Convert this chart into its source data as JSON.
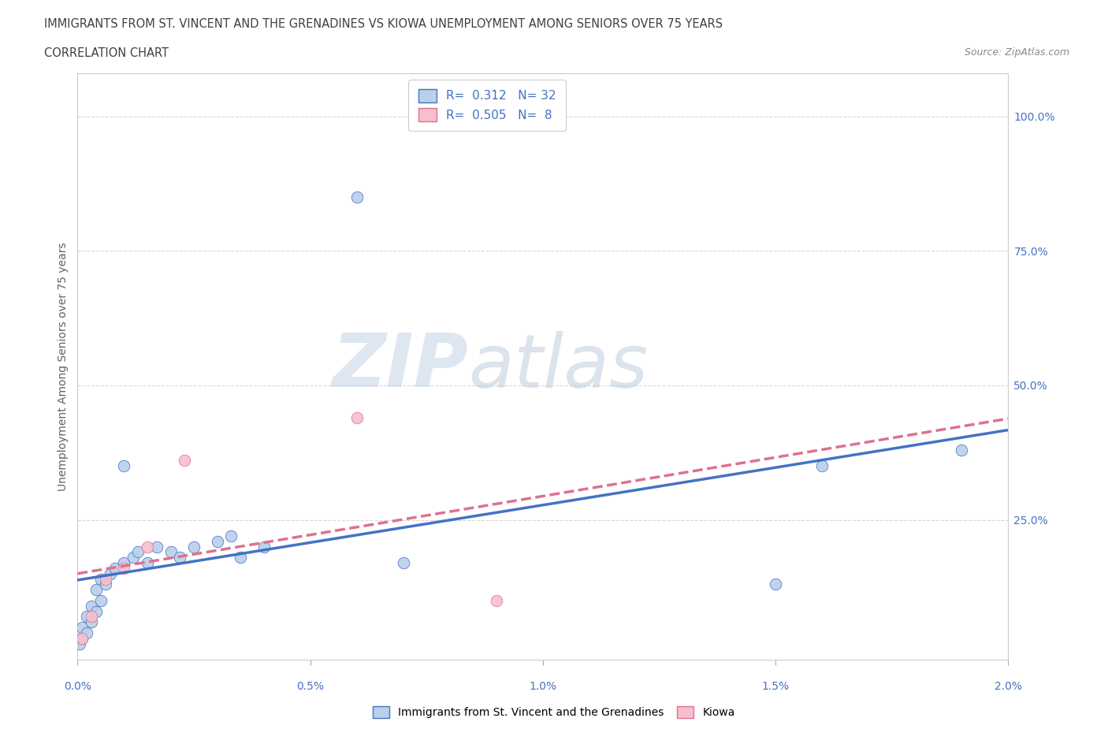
{
  "title_line1": "IMMIGRANTS FROM ST. VINCENT AND THE GRENADINES VS KIOWA UNEMPLOYMENT AMONG SENIORS OVER 75 YEARS",
  "title_line2": "CORRELATION CHART",
  "source": "Source: ZipAtlas.com",
  "ylabel": "Unemployment Among Seniors over 75 years",
  "xlim": [
    0.0,
    0.02
  ],
  "ylim": [
    -0.01,
    1.08
  ],
  "xtick_labels": [
    "0.0%",
    "0.5%",
    "1.0%",
    "1.5%",
    "2.0%"
  ],
  "xtick_values": [
    0.0,
    0.005,
    0.01,
    0.015,
    0.02
  ],
  "ytick_labels": [
    "100.0%",
    "75.0%",
    "50.0%",
    "25.0%"
  ],
  "ytick_values": [
    1.0,
    0.75,
    0.5,
    0.25
  ],
  "blue_scatter_x": [
    5e-05,
    0.0001,
    0.0001,
    0.0002,
    0.0002,
    0.0003,
    0.0003,
    0.0004,
    0.0004,
    0.0005,
    0.0005,
    0.0006,
    0.0007,
    0.0008,
    0.001,
    0.001,
    0.0012,
    0.0013,
    0.0015,
    0.0017,
    0.002,
    0.0022,
    0.0025,
    0.003,
    0.0033,
    0.0035,
    0.004,
    0.006,
    0.007,
    0.015,
    0.016,
    0.019
  ],
  "blue_scatter_y": [
    0.02,
    0.03,
    0.05,
    0.04,
    0.07,
    0.06,
    0.09,
    0.08,
    0.12,
    0.1,
    0.14,
    0.13,
    0.15,
    0.16,
    0.17,
    0.35,
    0.18,
    0.19,
    0.17,
    0.2,
    0.19,
    0.18,
    0.2,
    0.21,
    0.22,
    0.18,
    0.2,
    0.85,
    0.17,
    0.13,
    0.35,
    0.38
  ],
  "pink_scatter_x": [
    0.0001,
    0.0003,
    0.0006,
    0.001,
    0.0015,
    0.0023,
    0.006,
    0.009
  ],
  "pink_scatter_y": [
    0.03,
    0.07,
    0.14,
    0.16,
    0.2,
    0.36,
    0.44,
    0.1
  ],
  "blue_color": "#b8d0ea",
  "pink_color": "#f5c0ce",
  "blue_line_color": "#4472c4",
  "pink_line_color": "#e07090",
  "R_blue": "0.312",
  "N_blue": "32",
  "R_pink": "0.505",
  "N_pink": "8",
  "legend_blue_label": "Immigrants from St. Vincent and the Grenadines",
  "legend_pink_label": "Kiowa",
  "watermark_zip": "ZIP",
  "watermark_atlas": "atlas",
  "background_color": "#ffffff",
  "grid_color": "#d8d8d8",
  "spine_color": "#cccccc",
  "tick_color": "#aaaaaa",
  "title_color": "#404040",
  "source_color": "#888888",
  "axis_label_color": "#606060",
  "tick_label_color": "#4472c4"
}
